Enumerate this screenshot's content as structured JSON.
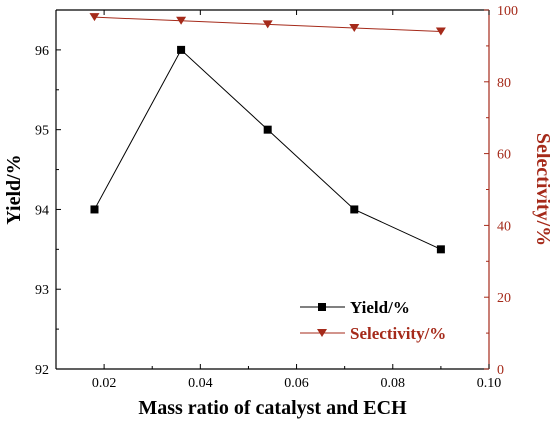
{
  "chart_data": {
    "type": "line",
    "xlabel": "Mass ratio of catalyst and ECH",
    "xlim": [
      0.01,
      0.1
    ],
    "x_ticks": [
      "0.02",
      "0.04",
      "0.06",
      "0.08",
      "0.10"
    ],
    "x_tick_values": [
      0.02,
      0.04,
      0.06,
      0.08,
      0.1
    ],
    "ylabel_left": "Yield/%",
    "ylim_left": [
      92,
      96.5
    ],
    "y_left_ticks": [
      "92",
      "93",
      "94",
      "95",
      "96"
    ],
    "y_left_tick_values": [
      92,
      93,
      94,
      95,
      96
    ],
    "ylabel_right": "Selectivity/%",
    "ylim_right": [
      0,
      100
    ],
    "y_right_ticks": [
      "0",
      "20",
      "40",
      "60",
      "80",
      "100"
    ],
    "y_right_tick_values": [
      0,
      20,
      40,
      60,
      80,
      100
    ],
    "x": [
      0.018,
      0.036,
      0.054,
      0.072,
      0.09
    ],
    "series": [
      {
        "name": "Yield/%",
        "axis": "left",
        "values": [
          94.0,
          96.0,
          95.0,
          94.0,
          93.5
        ],
        "color": "#000000",
        "marker": "square"
      },
      {
        "name": "Selectivity/%",
        "axis": "right",
        "values": [
          98.0,
          97.0,
          96.0,
          95.0,
          94.0
        ],
        "color": "#a52a1a",
        "marker": "triangle-down"
      }
    ],
    "grid": false,
    "legend_position": "bottom-right"
  }
}
